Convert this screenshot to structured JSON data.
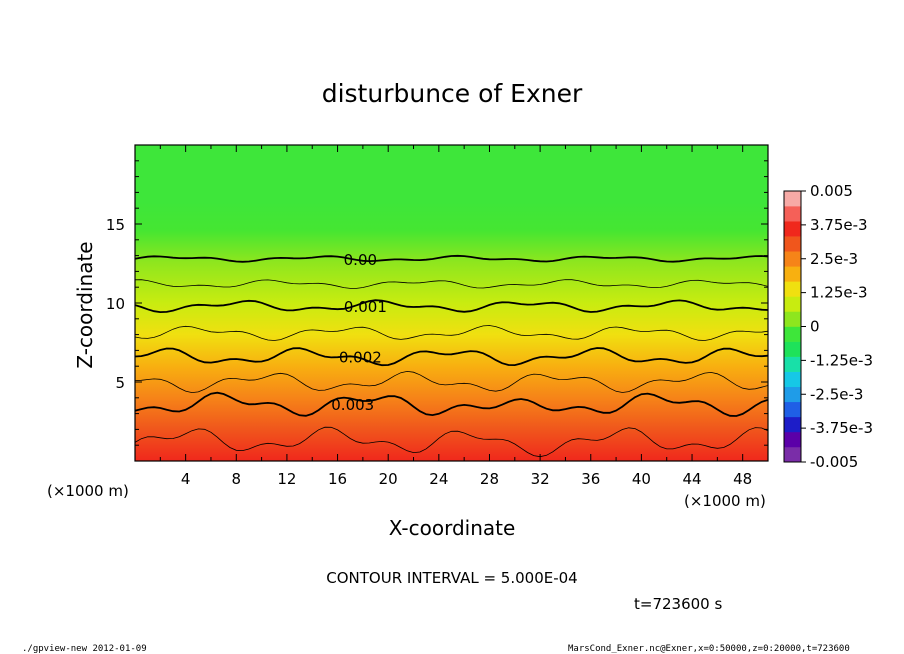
{
  "chart_data": {
    "type": "heatmap",
    "title": "disturbunce of Exner",
    "xlabel": "X-coordinate",
    "ylabel": "Z-coordinate",
    "x_unit": "(×1000 m)",
    "x_unit_right": "(×1000 m)",
    "y_unit": "(×1000 m)",
    "xlim": [
      0,
      50
    ],
    "ylim": [
      0,
      20
    ],
    "x_ticks": [
      "4",
      "8",
      "12",
      "16",
      "20",
      "24",
      "28",
      "32",
      "36",
      "40",
      "44",
      "48"
    ],
    "y_ticks": [
      "5",
      "10",
      "15"
    ],
    "colorbar": {
      "labels": [
        "0.005",
        "3.75e-3",
        "2.5e-3",
        "1.25e-3",
        "0",
        "-1.25e-3",
        "-2.5e-3",
        "-3.75e-3",
        "-0.005"
      ],
      "range": [
        -0.005,
        0.005
      ],
      "colors": [
        "#7a2da8",
        "#5b00a8",
        "#1d1dc8",
        "#1f5fe6",
        "#1f9ce8",
        "#16c8e6",
        "#18e0a8",
        "#1ee25a",
        "#3ee63a",
        "#8ee61e",
        "#c8ec10",
        "#f0e010",
        "#f8b010",
        "#f68418",
        "#f0561c",
        "#f0281c",
        "#f56058",
        "#f7aaa6"
      ]
    },
    "contour_labels": [
      {
        "text": "0.00",
        "value": 0.0
      },
      {
        "text": "0.001",
        "value": 0.001
      },
      {
        "text": "0.002",
        "value": 0.002
      },
      {
        "text": "0.003",
        "value": 0.003
      }
    ],
    "contour_levels": [
      {
        "value": 0.0,
        "z": 12.8,
        "major": true
      },
      {
        "value": 0.0005,
        "z": 11.2,
        "major": false
      },
      {
        "value": 0.001,
        "z": 9.8,
        "major": true
      },
      {
        "value": 0.0015,
        "z": 8.1,
        "major": false
      },
      {
        "value": 0.002,
        "z": 6.6,
        "major": true
      },
      {
        "value": 0.0025,
        "z": 5.0,
        "major": false
      },
      {
        "value": 0.003,
        "z": 3.6,
        "major": true
      },
      {
        "value": 0.0035,
        "z": 1.3,
        "major": false
      }
    ],
    "contour_interval_text": "CONTOUR INTERVAL = 5.000E-04",
    "time_text": "t=723600 s"
  },
  "footer": {
    "left": "./gpview-new  2012-01-09",
    "right": "MarsCond_Exner.nc@Exner,x=0:50000,z=0:20000,t=723600"
  }
}
